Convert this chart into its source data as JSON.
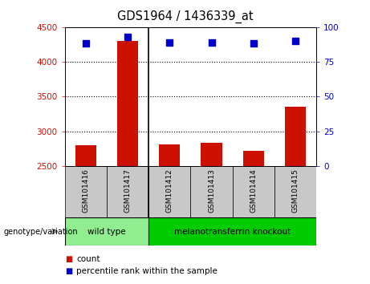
{
  "title": "GDS1964 / 1436339_at",
  "samples": [
    "GSM101416",
    "GSM101417",
    "GSM101412",
    "GSM101413",
    "GSM101414",
    "GSM101415"
  ],
  "counts": [
    2800,
    4300,
    2810,
    2830,
    2720,
    3350
  ],
  "percentile_ranks": [
    88,
    93,
    89,
    89,
    88,
    90
  ],
  "ylim_left": [
    2500,
    4500
  ],
  "ylim_right": [
    0,
    100
  ],
  "yticks_left": [
    2500,
    3000,
    3500,
    4000,
    4500
  ],
  "yticks_right": [
    0,
    25,
    50,
    75,
    100
  ],
  "groups": [
    {
      "label": "wild type",
      "indices": [
        0,
        1
      ],
      "color": "#90EE90"
    },
    {
      "label": "melanotransferrin knockout",
      "indices": [
        2,
        3,
        4,
        5
      ],
      "color": "#00CC00"
    }
  ],
  "bar_color": "#CC1100",
  "dot_color": "#0000CC",
  "tick_color_left": "#CC1100",
  "tick_color_right": "#0000CC",
  "genotype_label": "genotype/variation",
  "legend_count_label": "count",
  "legend_percentile_label": "percentile rank within the sample",
  "bar_width": 0.5,
  "dot_size": 40,
  "separator_index": 2,
  "xlabel_area_color": "#C8C8C8"
}
